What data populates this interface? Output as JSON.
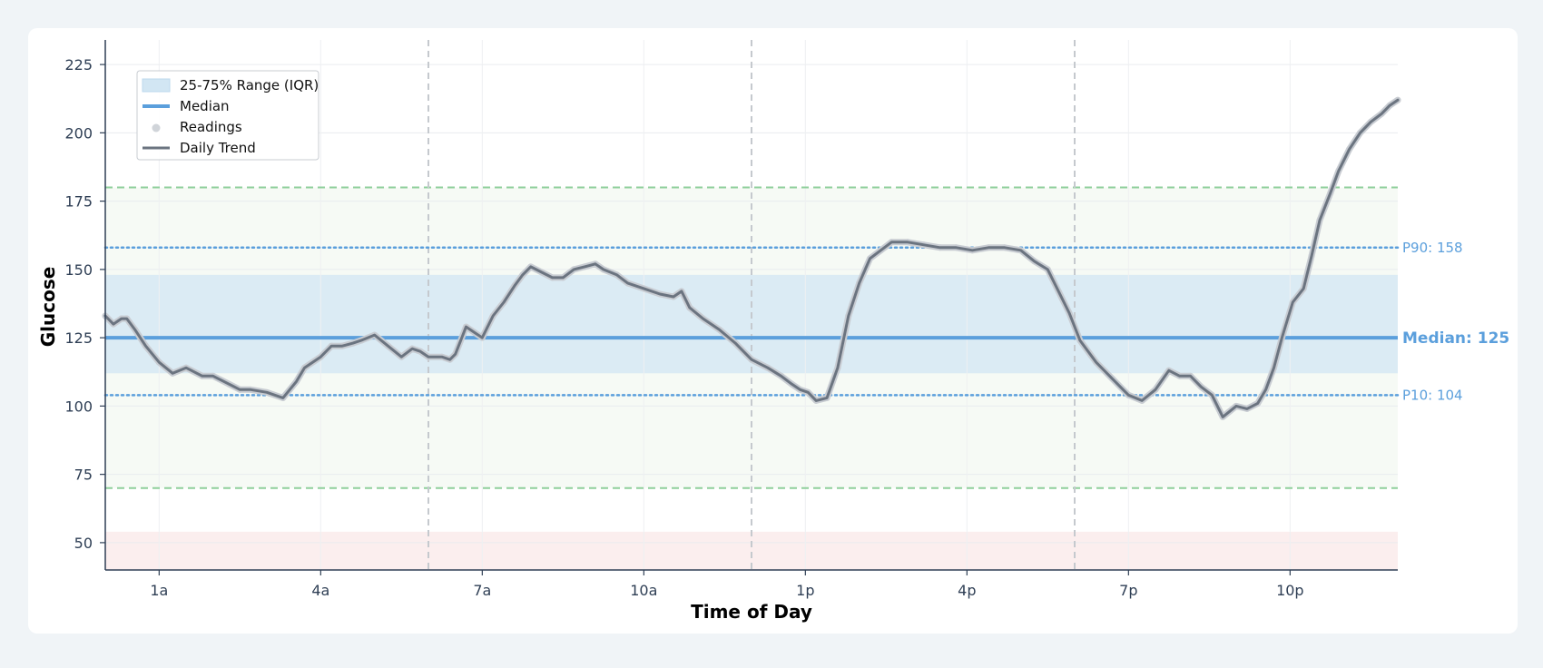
{
  "chart_data": {
    "type": "line",
    "title": "",
    "xlabel": "Time of Day",
    "ylabel": "Glucose",
    "xlim": [
      0,
      24
    ],
    "ylim": [
      40,
      234
    ],
    "x_ticks": [
      {
        "x": 1,
        "label": "1a"
      },
      {
        "x": 4,
        "label": "4a"
      },
      {
        "x": 7,
        "label": "7a"
      },
      {
        "x": 10,
        "label": "10a"
      },
      {
        "x": 13,
        "label": "1p"
      },
      {
        "x": 16,
        "label": "4p"
      },
      {
        "x": 19,
        "label": "7p"
      },
      {
        "x": 22,
        "label": "10p"
      }
    ],
    "y_ticks": [
      50,
      75,
      100,
      125,
      150,
      175,
      200,
      225
    ],
    "grid": true,
    "legend_position": "top-left",
    "legend": [
      "25-75% Range (IQR)",
      "Median",
      "Readings",
      "Daily Trend"
    ],
    "iqr": {
      "name": "25-75% Range (IQR)",
      "low": 112,
      "high": 148,
      "color": "#d2e6f3"
    },
    "median": {
      "name": "Median",
      "value": 125,
      "label": "Median: 125",
      "color": "#5b9fdc"
    },
    "p90": {
      "value": 158,
      "label": "P90: 158",
      "color": "#5b9fdc"
    },
    "p10": {
      "value": 104,
      "label": "P10: 104",
      "color": "#5b9fdc"
    },
    "target_range": {
      "low": 70,
      "high": 180,
      "color": "#8fcf9b"
    },
    "low_zone": {
      "low": 40,
      "high": 54,
      "color": "#fbeeee"
    },
    "period_dividers": [
      6,
      12,
      18
    ],
    "readings_series": {
      "name": "Readings",
      "color": "#c8ccd2"
    },
    "trend_series": {
      "name": "Daily Trend",
      "color": "#6b7480",
      "x": [
        0.0,
        0.15,
        0.3,
        0.4,
        0.55,
        0.75,
        1.0,
        1.25,
        1.5,
        1.8,
        2.0,
        2.3,
        2.5,
        2.7,
        3.0,
        3.3,
        3.55,
        3.7,
        4.0,
        4.2,
        4.4,
        4.6,
        4.75,
        5.0,
        5.25,
        5.5,
        5.7,
        5.85,
        6.0,
        6.25,
        6.4,
        6.5,
        6.7,
        6.85,
        7.0,
        7.2,
        7.4,
        7.6,
        7.75,
        7.9,
        8.1,
        8.3,
        8.5,
        8.7,
        8.9,
        9.1,
        9.25,
        9.5,
        9.7,
        10.0,
        10.3,
        10.55,
        10.7,
        10.85,
        11.1,
        11.4,
        11.7,
        12.0,
        12.3,
        12.55,
        12.75,
        12.9,
        13.05,
        13.2,
        13.4,
        13.6,
        13.8,
        14.0,
        14.2,
        14.4,
        14.6,
        14.9,
        15.2,
        15.5,
        15.8,
        16.1,
        16.4,
        16.7,
        17.0,
        17.25,
        17.5,
        17.7,
        17.9,
        18.1,
        18.4,
        18.7,
        19.0,
        19.25,
        19.5,
        19.75,
        19.95,
        20.15,
        20.35,
        20.55,
        20.75,
        21.0,
        21.2,
        21.4,
        21.55,
        21.7,
        21.85,
        22.05,
        22.25,
        22.4,
        22.55,
        22.75,
        22.9,
        23.1,
        23.3,
        23.5,
        23.7,
        23.85,
        24.0
      ],
      "y": [
        133,
        130,
        132,
        132,
        128,
        122,
        116,
        112,
        114,
        111,
        111,
        108,
        106,
        106,
        105,
        103,
        109,
        114,
        118,
        122,
        122,
        123,
        124,
        126,
        122,
        118,
        121,
        120,
        118,
        118,
        117,
        119,
        129,
        127,
        125,
        133,
        138,
        144,
        148,
        151,
        149,
        147,
        147,
        150,
        151,
        152,
        150,
        148,
        145,
        143,
        141,
        140,
        142,
        136,
        132,
        128,
        123,
        117,
        114,
        111,
        108,
        106,
        105,
        102,
        103,
        114,
        133,
        145,
        154,
        157,
        160,
        160,
        159,
        158,
        158,
        157,
        158,
        158,
        157,
        153,
        150,
        142,
        134,
        124,
        116,
        110,
        104,
        102,
        106,
        113,
        111,
        111,
        107,
        104,
        96,
        100,
        99,
        101,
        106,
        114,
        125,
        138,
        143,
        155,
        168,
        178,
        186,
        194,
        200,
        204,
        207,
        210,
        212
      ]
    }
  }
}
